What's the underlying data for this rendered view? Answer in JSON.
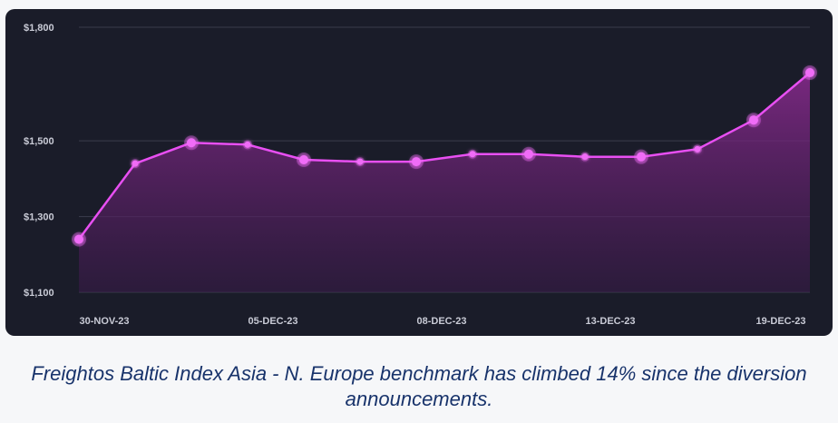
{
  "caption": "Freightos Baltic Index Asia - N. Europe benchmark has climbed 14% since the diversion announcements.",
  "colors": {
    "panel_bg": "#1a1c29",
    "line": "#e84ff2",
    "marker": "#f06cf7",
    "area_top": "#8a2a8f",
    "area_bottom": "#3a1a4a",
    "grid": "#3a3c4c",
    "tick_text": "#c9cbd6",
    "caption_text": "#18336b"
  },
  "chart_data": {
    "type": "area",
    "title": "",
    "xlabel": "",
    "ylabel": "",
    "ylim": [
      1100,
      1800
    ],
    "y_ticks": [
      {
        "value": 1800,
        "label": "$1,800"
      },
      {
        "value": 1500,
        "label": "$1,500"
      },
      {
        "value": 1300,
        "label": "$1,300"
      },
      {
        "value": 1100,
        "label": "$1,100"
      }
    ],
    "x_tick_labels": [
      {
        "index": 0,
        "label": "30-NOV-23"
      },
      {
        "index": 3,
        "label": "05-DEC-23"
      },
      {
        "index": 6,
        "label": "08-DEC-23"
      },
      {
        "index": 9,
        "label": "13-DEC-23"
      },
      {
        "index": 13,
        "label": "19-DEC-23"
      }
    ],
    "grid": true,
    "legend": "none",
    "series": [
      {
        "values": [
          1240,
          1440,
          1495,
          1490,
          1450,
          1445,
          1445,
          1465,
          1465,
          1458,
          1458,
          1478,
          1555,
          1680
        ]
      }
    ]
  }
}
